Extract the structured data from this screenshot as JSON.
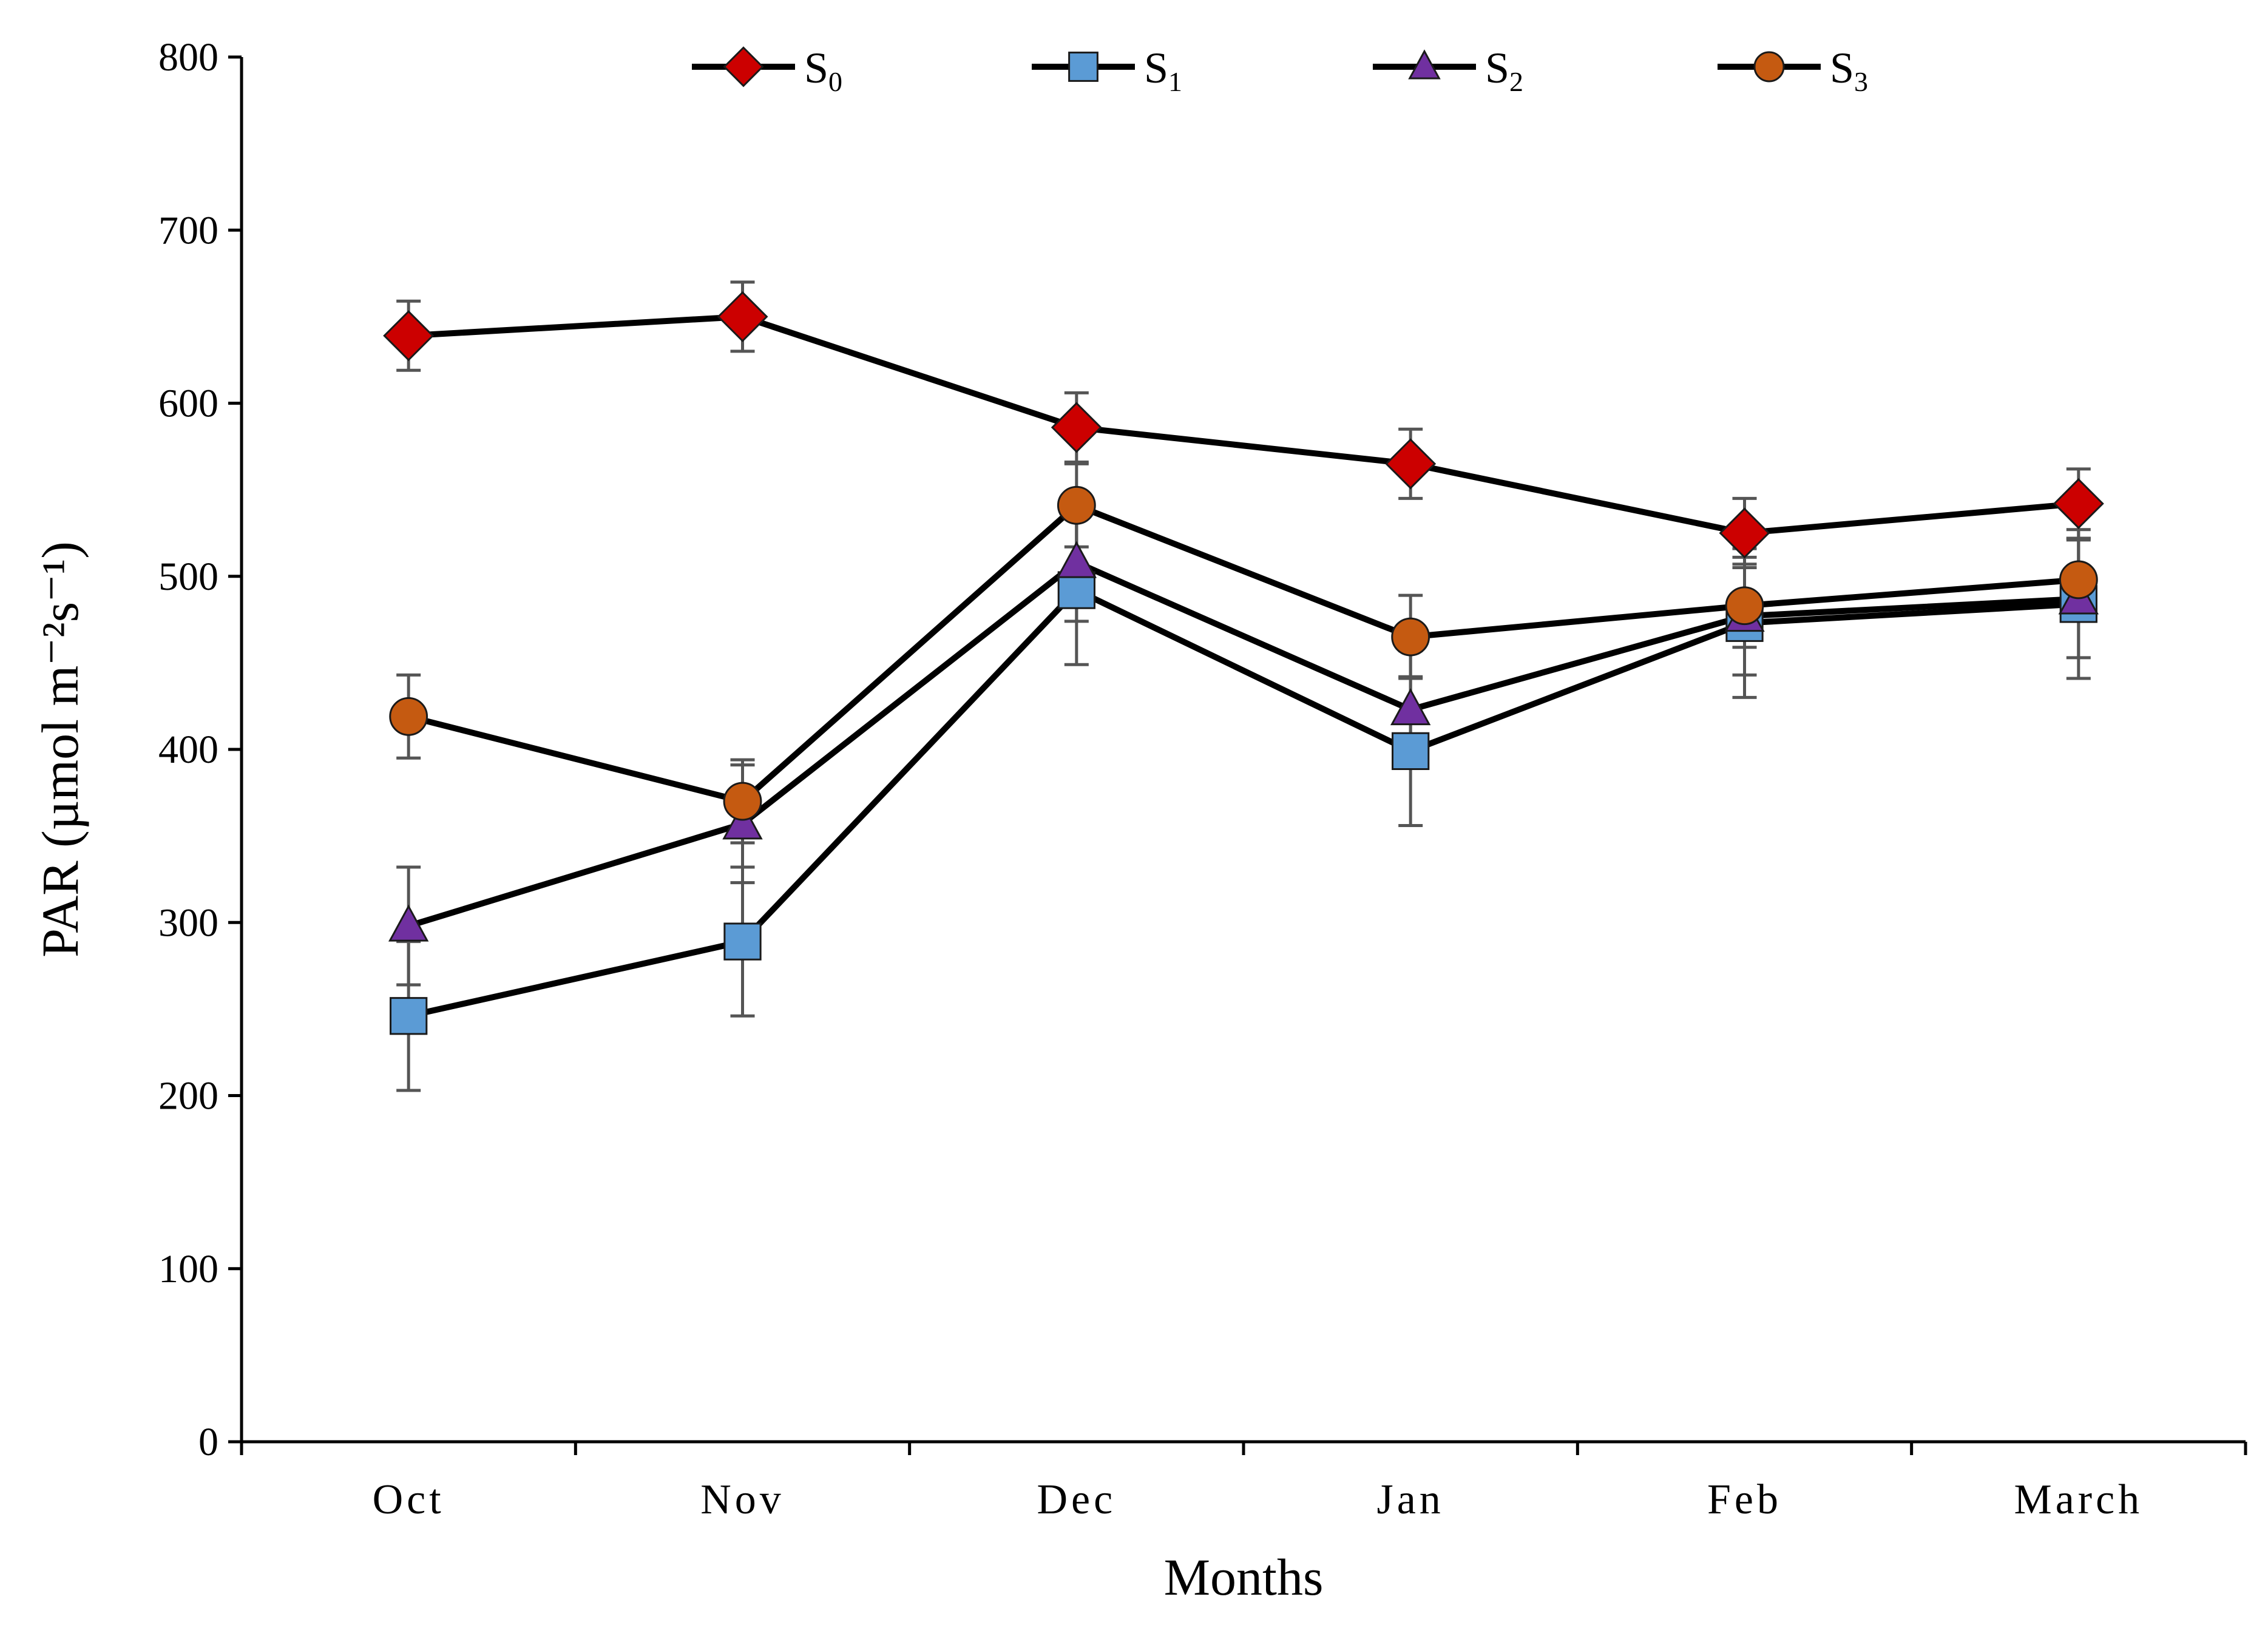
{
  "chart_data": {
    "type": "line",
    "title": "",
    "xlabel": "Months",
    "ylabel": "PAR (µmol m⁻²s⁻¹)",
    "ylim": [
      0,
      800
    ],
    "yticks": [
      0,
      100,
      200,
      300,
      400,
      500,
      600,
      700,
      800
    ],
    "categories": [
      "Oct",
      "Nov",
      "Dec",
      "Jan",
      "Feb",
      "March"
    ],
    "legend_position": "top-center",
    "series": [
      {
        "name": "S0",
        "base": "S",
        "subscript": "0",
        "marker": "diamond",
        "color": "#cc0000",
        "values": [
          639,
          650,
          586,
          565,
          525,
          542
        ],
        "errors": [
          20,
          20,
          20,
          20,
          20,
          20
        ]
      },
      {
        "name": "S1",
        "base": "S",
        "subscript": "1",
        "marker": "square",
        "color": "#5b9bd5",
        "values": [
          246,
          289,
          492,
          399,
          473,
          484
        ],
        "errors": [
          43,
          43,
          43,
          43,
          43,
          43
        ]
      },
      {
        "name": "S2",
        "base": "S",
        "subscript": "2",
        "marker": "triangle",
        "color": "#7030a0",
        "values": [
          298,
          357,
          508,
          423,
          477,
          487
        ],
        "errors": [
          34,
          34,
          34,
          34,
          34,
          34
        ]
      },
      {
        "name": "S3",
        "base": "S",
        "subscript": "3",
        "marker": "circle",
        "color": "#c55a11",
        "values": [
          419,
          370,
          541,
          465,
          483,
          498
        ],
        "errors": [
          24,
          24,
          24,
          24,
          24,
          24
        ]
      }
    ]
  }
}
